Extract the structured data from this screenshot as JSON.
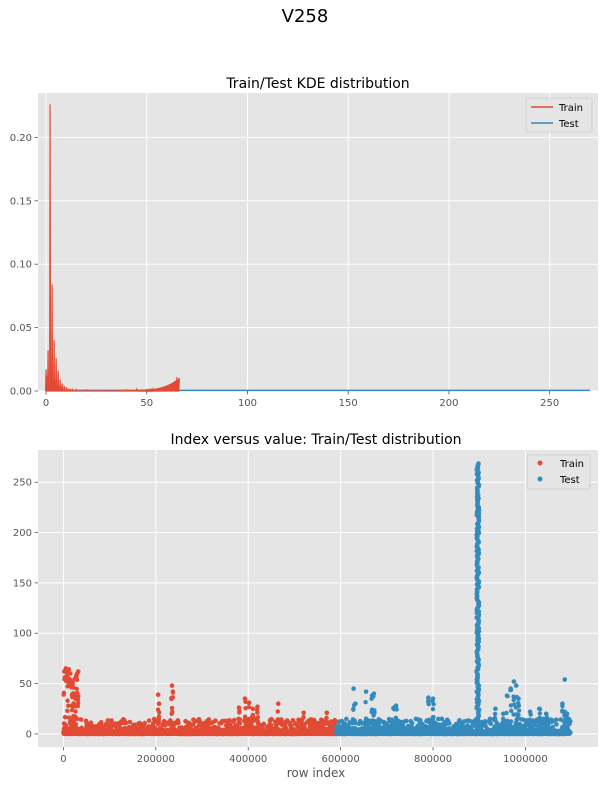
{
  "suptitle": "V258",
  "chart_data": [
    {
      "type": "line",
      "title": "Train/Test KDE distribution",
      "xlabel": "",
      "ylabel": "",
      "xlim": [
        -4,
        274
      ],
      "ylim": [
        0,
        0.235
      ],
      "xticks": [
        0,
        50,
        100,
        150,
        200,
        250
      ],
      "yticks": [
        0.0,
        0.05,
        0.1,
        0.15,
        0.2
      ],
      "ytick_labels": [
        "0.00",
        "0.05",
        "0.10",
        "0.15",
        "0.20"
      ],
      "xtick_labels": [
        "0",
        "50",
        "100",
        "150",
        "200",
        "250"
      ],
      "grid": true,
      "legend_position": "top-right",
      "series": [
        {
          "name": "Train",
          "color": "#E24A33",
          "peaks": [
            [
              0.0,
              0.017
            ],
            [
              0.5,
              0.012
            ],
            [
              1.0,
              0.032
            ],
            [
              1.5,
              0.006
            ],
            [
              2.0,
              0.226
            ],
            [
              2.5,
              0.01
            ],
            [
              3.0,
              0.084
            ],
            [
              3.5,
              0.01
            ],
            [
              4.0,
              0.04
            ],
            [
              4.5,
              0.008
            ],
            [
              5.0,
              0.026
            ],
            [
              5.5,
              0.006
            ],
            [
              6.0,
              0.016
            ],
            [
              6.5,
              0.004
            ],
            [
              7.0,
              0.009
            ],
            [
              7.5,
              0.003
            ],
            [
              8.0,
              0.006
            ],
            [
              9.0,
              0.004
            ],
            [
              10.0,
              0.003
            ],
            [
              11.0,
              0.002
            ],
            [
              12.0,
              0.0015
            ],
            [
              13.0,
              0.0012
            ],
            [
              15.0,
              0.001
            ],
            [
              20.0,
              0.0008
            ],
            [
              30.0,
              0.0005
            ],
            [
              40.0,
              0.0008
            ],
            [
              45.0,
              0.0012
            ],
            [
              50.0,
              0.0015
            ],
            [
              55.0,
              0.002
            ],
            [
              58.0,
              0.0025
            ],
            [
              60.0,
              0.003
            ],
            [
              61.0,
              0.004
            ],
            [
              62.0,
              0.005
            ],
            [
              63.0,
              0.006
            ],
            [
              64.0,
              0.008
            ],
            [
              65.0,
              0.011
            ],
            [
              66.0,
              0.0
            ]
          ]
        },
        {
          "name": "Test",
          "color": "#348ABD",
          "x": [
            0,
            270
          ],
          "y": [
            0.0005,
            0.0005
          ]
        }
      ]
    },
    {
      "type": "scatter",
      "title": "Index versus value: Train/Test distribution",
      "xlabel": "row index",
      "ylabel": "",
      "xlim": [
        -55000,
        1157000
      ],
      "ylim": [
        -13,
        282
      ],
      "xticks": [
        0,
        200000,
        400000,
        600000,
        800000,
        1000000
      ],
      "xtick_labels": [
        "0",
        "200000",
        "400000",
        "600000",
        "800000",
        "1000000"
      ],
      "yticks": [
        0,
        50,
        100,
        150,
        200,
        250
      ],
      "ytick_labels": [
        "0",
        "50",
        "100",
        "150",
        "200",
        "250"
      ],
      "grid": true,
      "legend_position": "top-right",
      "series": [
        {
          "name": "Train",
          "color": "#E24A33",
          "x_range": [
            0,
            590540
          ],
          "typical_max": 15,
          "outliers": [
            [
              2000,
              62
            ],
            [
              5000,
              65
            ],
            [
              8000,
              63
            ],
            [
              12000,
              64
            ],
            [
              15000,
              60
            ],
            [
              18000,
              48
            ],
            [
              20000,
              52
            ],
            [
              22000,
              46
            ],
            [
              25000,
              55
            ],
            [
              28000,
              58
            ],
            [
              30000,
              60
            ],
            [
              32000,
              62
            ],
            [
              26000,
              35
            ],
            [
              24000,
              40
            ],
            [
              205000,
              39
            ],
            [
              207000,
              30
            ],
            [
              235000,
              48
            ],
            [
              237000,
              42
            ],
            [
              380000,
              26
            ],
            [
              393000,
              35
            ],
            [
              402000,
              31
            ],
            [
              410000,
              25
            ],
            [
              420000,
              27
            ],
            [
              465000,
              30
            ],
            [
              520000,
              21
            ],
            [
              570000,
              21
            ]
          ]
        },
        {
          "name": "Test",
          "color": "#348ABD",
          "x_range": [
            590540,
            1097231
          ],
          "typical_max": 15,
          "spike_x": 897000,
          "spike_max": 269,
          "outliers": [
            [
              628000,
              45
            ],
            [
              632000,
              30
            ],
            [
              655000,
              42
            ],
            [
              668000,
              38
            ],
            [
              672000,
              40
            ],
            [
              715000,
              26
            ],
            [
              720000,
              28
            ],
            [
              790000,
              36
            ],
            [
              800000,
              35
            ],
            [
              960000,
              38
            ],
            [
              968000,
              45
            ],
            [
              975000,
              52
            ],
            [
              980000,
              48
            ],
            [
              985000,
              35
            ],
            [
              935000,
              25
            ],
            [
              952000,
              20
            ],
            [
              1010000,
              22
            ],
            [
              1030000,
              25
            ],
            [
              1045000,
              20
            ],
            [
              1080000,
              30
            ],
            [
              1085000,
              54
            ],
            [
              1090000,
              20
            ]
          ]
        }
      ]
    }
  ]
}
